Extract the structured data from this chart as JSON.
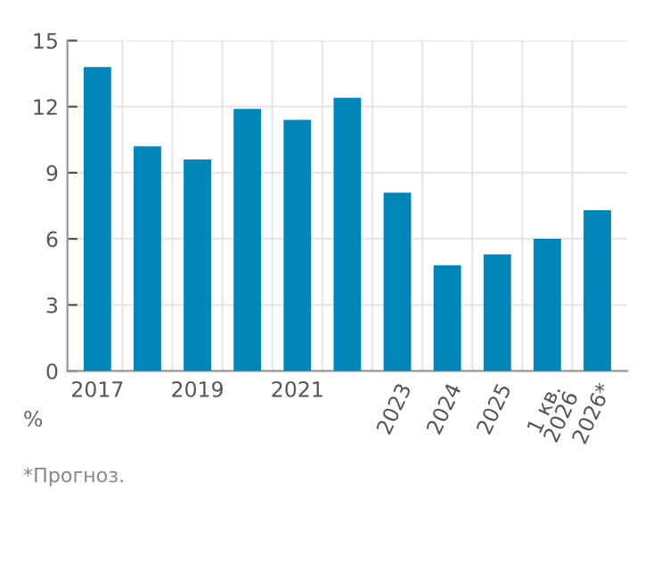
{
  "chart_data": {
    "type": "bar",
    "categories": [
      "2017",
      null,
      "2019",
      null,
      "2021",
      null,
      "2023",
      "2024",
      "2025",
      "1 кв.\n2026",
      "2026*"
    ],
    "values": [
      13.8,
      10.2,
      9.6,
      11.9,
      11.4,
      12.4,
      8.1,
      4.8,
      5.3,
      6.0,
      7.3
    ],
    "color": "#0086b8",
    "ylim": [
      0,
      15
    ],
    "yticks": [
      0,
      3,
      6,
      9,
      12,
      15
    ],
    "grid": true,
    "ylabel": "%",
    "annotations": [
      "*Прогноз."
    ]
  }
}
